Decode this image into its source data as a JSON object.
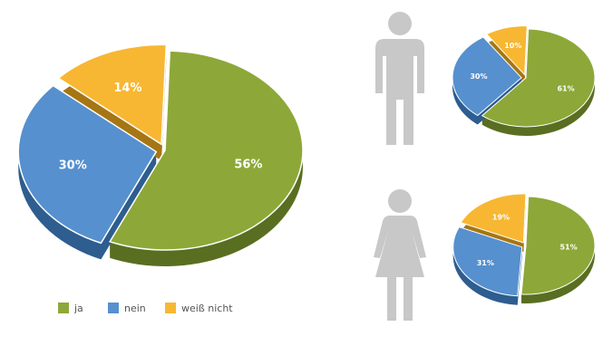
{
  "colors": {
    "ja": "#8DA838",
    "ja_side": "#5A6E22",
    "nein": "#5690CF",
    "nein_side": "#2E5D8F",
    "weiss_nicht": "#F7B733",
    "weiss_nicht_side": "#A67614",
    "figure": "#C8C8C8"
  },
  "legend": [
    {
      "key": "ja",
      "label": "ja"
    },
    {
      "key": "nein",
      "label": "nein"
    },
    {
      "key": "weiss_nicht",
      "label": "weiß nicht"
    }
  ],
  "chart_data": [
    {
      "type": "pie",
      "group": "",
      "categories": [
        "ja",
        "nein",
        "weiß nicht"
      ],
      "values": [
        56,
        30,
        14
      ],
      "labels": [
        "56%",
        "30%",
        "14%"
      ],
      "exploded": [
        "nein",
        "weiß nicht"
      ]
    },
    {
      "type": "pie",
      "group": "male-icon",
      "categories": [
        "ja",
        "nein",
        "weiß nicht"
      ],
      "values": [
        61,
        30,
        10
      ],
      "labels": [
        "61%",
        "30%",
        "10%"
      ],
      "exploded": [
        "nein",
        "weiß nicht"
      ]
    },
    {
      "type": "pie",
      "group": "female-icon",
      "categories": [
        "ja",
        "nein",
        "weiß nicht"
      ],
      "values": [
        51,
        31,
        19
      ],
      "labels": [
        "51%",
        "31%",
        "19%"
      ],
      "exploded": [
        "nein",
        "weiß nicht"
      ]
    }
  ]
}
